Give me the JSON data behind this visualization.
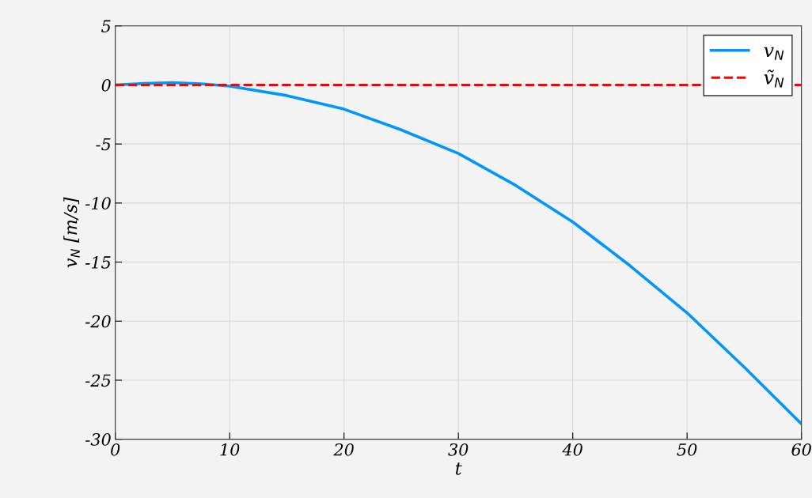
{
  "chart_data": {
    "type": "line",
    "xlabel": "t",
    "ylabel": "v$_{N}$ [m/s]",
    "xlim": [
      0,
      60
    ],
    "ylim": [
      -30,
      5
    ],
    "xticks": [
      0,
      10,
      20,
      30,
      40,
      50,
      60
    ],
    "yticks": [
      -30,
      -25,
      -20,
      -15,
      -10,
      -5,
      0,
      5
    ],
    "grid": true,
    "legend": "top right",
    "series": [
      {
        "name": "v$_{N}$",
        "color": "#0096ff",
        "line_style": "solid",
        "x": [
          0,
          2.5,
          5,
          7.5,
          10,
          15,
          20,
          25,
          30,
          35,
          40,
          45,
          50,
          55,
          60
        ],
        "values": [
          0,
          0.12,
          0.2,
          0.1,
          -0.1,
          -0.9,
          -2.05,
          -3.8,
          -5.8,
          -8.5,
          -11.6,
          -15.3,
          -19.3,
          -23.9,
          -28.7
        ]
      },
      {
        "name": "ṽ$_{N}$",
        "color": "#ff0000",
        "line_style": "dashed",
        "x": [
          0,
          60
        ],
        "values": [
          0,
          0
        ]
      }
    ]
  }
}
